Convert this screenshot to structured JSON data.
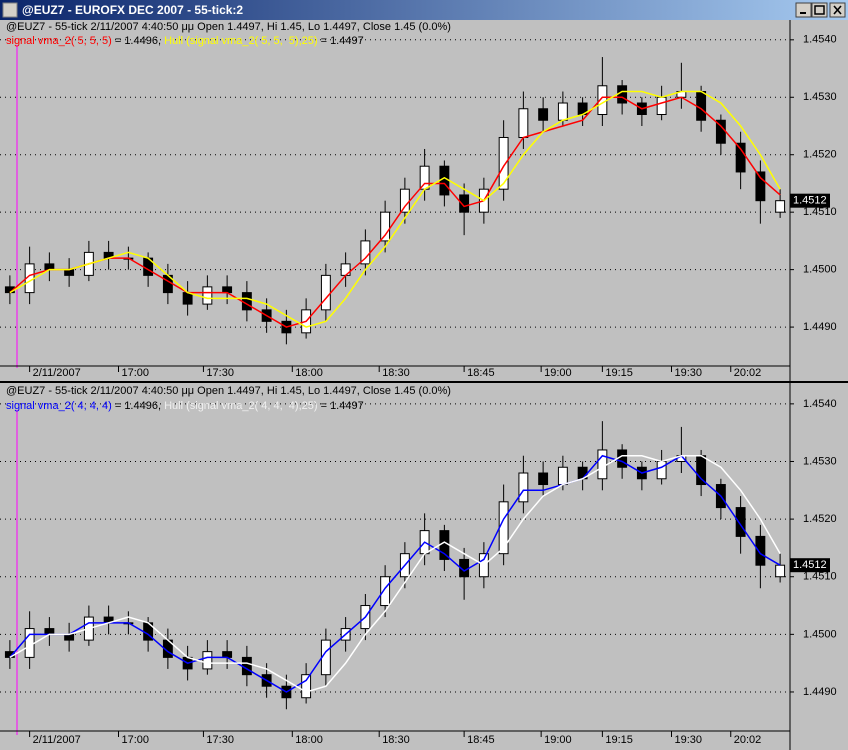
{
  "window": {
    "title": "@EUZ7 - EUROFX DEC 2007 - 55-tick:2"
  },
  "chart_data": [
    {
      "type": "candlestick",
      "header": "@EUZ7 - 55-tick 2/11/2007 4:40:50 μμ Open 1.4497, Hi 1.45, Lo 1.4497, Close 1.45 (0.0%)",
      "open": [
        1.4497,
        1.4496,
        1.4501,
        1.45,
        1.4499,
        1.4503,
        1.4502,
        1.4502,
        1.4499,
        1.4496,
        1.4494,
        1.4497,
        1.4496,
        1.4493,
        1.4491,
        1.4489,
        1.4493,
        1.4499,
        1.4501,
        1.4505,
        1.451,
        1.4514,
        1.4518,
        1.4513,
        1.451,
        1.4514,
        1.4523,
        1.4528,
        1.4526,
        1.4529,
        1.4527,
        1.4532,
        1.4529,
        1.4527,
        1.453,
        1.4531,
        1.4526,
        1.4522,
        1.4517,
        1.451
      ],
      "high": [
        1.4499,
        1.4504,
        1.4503,
        1.4502,
        1.4505,
        1.4505,
        1.4504,
        1.4503,
        1.4501,
        1.4498,
        1.4499,
        1.4499,
        1.4498,
        1.4495,
        1.4493,
        1.4495,
        1.4501,
        1.4503,
        1.4507,
        1.4512,
        1.4516,
        1.4521,
        1.4519,
        1.4515,
        1.4516,
        1.4526,
        1.4531,
        1.453,
        1.4531,
        1.453,
        1.4537,
        1.4533,
        1.453,
        1.4532,
        1.4536,
        1.4532,
        1.4527,
        1.4524,
        1.4519,
        1.4514
      ],
      "low": [
        1.4494,
        1.4494,
        1.4498,
        1.4497,
        1.4498,
        1.45,
        1.45,
        1.4497,
        1.4494,
        1.4492,
        1.4493,
        1.4494,
        1.4491,
        1.4489,
        1.4487,
        1.4488,
        1.4491,
        1.4497,
        1.4499,
        1.4503,
        1.4508,
        1.4512,
        1.4511,
        1.4506,
        1.4508,
        1.4512,
        1.4521,
        1.4524,
        1.4525,
        1.4525,
        1.4525,
        1.4527,
        1.4525,
        1.4526,
        1.4528,
        1.4524,
        1.452,
        1.4514,
        1.4508,
        1.4509
      ],
      "close": [
        1.4496,
        1.4501,
        1.45,
        1.4499,
        1.4503,
        1.4502,
        1.4502,
        1.4499,
        1.4496,
        1.4494,
        1.4497,
        1.4496,
        1.4493,
        1.4491,
        1.4489,
        1.4493,
        1.4499,
        1.4501,
        1.4505,
        1.451,
        1.4514,
        1.4518,
        1.4513,
        1.451,
        1.4514,
        1.4523,
        1.4528,
        1.4526,
        1.4529,
        1.4527,
        1.4532,
        1.4529,
        1.4527,
        1.453,
        1.4531,
        1.4526,
        1.4522,
        1.4517,
        1.4512,
        1.4512
      ],
      "series": [
        {
          "name": "signal vma_2( 5, 5, 5)",
          "readout": " = 1.4496, ",
          "color": "#ff0000",
          "values": [
            1.4496,
            1.4499,
            1.45,
            1.45,
            1.4501,
            1.4502,
            1.4502,
            1.45,
            1.4498,
            1.4496,
            1.4496,
            1.4496,
            1.4494,
            1.4492,
            1.449,
            1.4491,
            1.4495,
            1.4499,
            1.4502,
            1.4506,
            1.4511,
            1.4515,
            1.4515,
            1.4511,
            1.4512,
            1.4518,
            1.4523,
            1.4524,
            1.4525,
            1.4526,
            1.453,
            1.453,
            1.4528,
            1.4529,
            1.453,
            1.4528,
            1.4525,
            1.4521,
            1.4516,
            1.4513
          ]
        },
        {
          "name": "Hull (signal vma_2( 5, 5,  5),25)",
          "readout": " = 1.4497",
          "color": "#ffff00",
          "values": [
            1.4496,
            1.4498,
            1.45,
            1.45,
            1.4501,
            1.4502,
            1.4503,
            1.4502,
            1.4499,
            1.4496,
            1.4495,
            1.4495,
            1.4495,
            1.4494,
            1.4492,
            1.449,
            1.4491,
            1.4495,
            1.45,
            1.4504,
            1.4509,
            1.4514,
            1.4516,
            1.4514,
            1.4512,
            1.4515,
            1.452,
            1.4524,
            1.4526,
            1.4527,
            1.4529,
            1.4531,
            1.4531,
            1.453,
            1.4531,
            1.4531,
            1.4529,
            1.4525,
            1.452,
            1.4514
          ]
        }
      ],
      "last_price": 1.4512,
      "xlim": [
        -0.5,
        39.5
      ],
      "xticks": [
        {
          "value": 1,
          "label": "2/11/2007"
        },
        {
          "value": 5.5,
          "label": "17:00"
        },
        {
          "value": 9.8,
          "label": "17:30"
        },
        {
          "value": 14.3,
          "label": "18:00"
        },
        {
          "value": 18.7,
          "label": "18:30"
        },
        {
          "value": 23,
          "label": "18:45"
        },
        {
          "value": 26.9,
          "label": "19:00"
        },
        {
          "value": 30,
          "label": "19:15"
        },
        {
          "value": 33.5,
          "label": "19:30"
        },
        {
          "value": 36.5,
          "label": "20:02"
        }
      ],
      "ylim": [
        1.44834,
        1.45431
      ],
      "yticks": [
        {
          "value": 1.454,
          "label": "1.4540"
        },
        {
          "value": 1.453,
          "label": "1.4530"
        },
        {
          "value": 1.452,
          "label": "1.4520"
        },
        {
          "value": 1.451,
          "label": "1.4510"
        },
        {
          "value": 1.45,
          "label": "1.4500"
        },
        {
          "value": 1.449,
          "label": "1.4490"
        }
      ],
      "grid": true
    },
    {
      "type": "candlestick",
      "header": "@EUZ7 - 55-tick 2/11/2007 4:40:50 μμ Open 1.4497, Hi 1.45, Lo 1.4497, Close 1.45 (0.0%)",
      "open": [
        1.4497,
        1.4496,
        1.4501,
        1.45,
        1.4499,
        1.4503,
        1.4502,
        1.4502,
        1.4499,
        1.4496,
        1.4494,
        1.4497,
        1.4496,
        1.4493,
        1.4491,
        1.4489,
        1.4493,
        1.4499,
        1.4501,
        1.4505,
        1.451,
        1.4514,
        1.4518,
        1.4513,
        1.451,
        1.4514,
        1.4523,
        1.4528,
        1.4526,
        1.4529,
        1.4527,
        1.4532,
        1.4529,
        1.4527,
        1.453,
        1.4531,
        1.4526,
        1.4522,
        1.4517,
        1.451
      ],
      "high": [
        1.4499,
        1.4504,
        1.4503,
        1.4502,
        1.4505,
        1.4505,
        1.4504,
        1.4503,
        1.4501,
        1.4498,
        1.4499,
        1.4499,
        1.4498,
        1.4495,
        1.4493,
        1.4495,
        1.4501,
        1.4503,
        1.4507,
        1.4512,
        1.4516,
        1.4521,
        1.4519,
        1.4515,
        1.4516,
        1.4526,
        1.4531,
        1.453,
        1.4531,
        1.453,
        1.4537,
        1.4533,
        1.453,
        1.4532,
        1.4536,
        1.4532,
        1.4527,
        1.4524,
        1.4519,
        1.4514
      ],
      "low": [
        1.4494,
        1.4494,
        1.4498,
        1.4497,
        1.4498,
        1.45,
        1.45,
        1.4497,
        1.4494,
        1.4492,
        1.4493,
        1.4494,
        1.4491,
        1.4489,
        1.4487,
        1.4488,
        1.4491,
        1.4497,
        1.4499,
        1.4503,
        1.4508,
        1.4512,
        1.4511,
        1.4506,
        1.4508,
        1.4512,
        1.4521,
        1.4524,
        1.4525,
        1.4525,
        1.4525,
        1.4527,
        1.4525,
        1.4526,
        1.4528,
        1.4524,
        1.452,
        1.4514,
        1.4508,
        1.4509
      ],
      "close": [
        1.4496,
        1.4501,
        1.45,
        1.4499,
        1.4503,
        1.4502,
        1.4502,
        1.4499,
        1.4496,
        1.4494,
        1.4497,
        1.4496,
        1.4493,
        1.4491,
        1.4489,
        1.4493,
        1.4499,
        1.4501,
        1.4505,
        1.451,
        1.4514,
        1.4518,
        1.4513,
        1.451,
        1.4514,
        1.4523,
        1.4528,
        1.4526,
        1.4529,
        1.4527,
        1.4532,
        1.4529,
        1.4527,
        1.453,
        1.4531,
        1.4526,
        1.4522,
        1.4517,
        1.4512,
        1.4512
      ],
      "series": [
        {
          "name": "signal vma_2( 4, 4, 4)",
          "readout": " = 1.4496, ",
          "color": "#0000ff",
          "values": [
            1.4496,
            1.45,
            1.45,
            1.45,
            1.4502,
            1.4502,
            1.4502,
            1.45,
            1.4497,
            1.4495,
            1.4496,
            1.4496,
            1.4494,
            1.4492,
            1.449,
            1.4492,
            1.4497,
            1.45,
            1.4503,
            1.4508,
            1.4512,
            1.4516,
            1.4514,
            1.4511,
            1.4513,
            1.452,
            1.4525,
            1.4525,
            1.4526,
            1.4527,
            1.4531,
            1.453,
            1.4528,
            1.4529,
            1.4531,
            1.4527,
            1.4524,
            1.4519,
            1.4514,
            1.4512
          ]
        },
        {
          "name": "Hull (signal vma_2( 4, 4,  4),25)",
          "readout": " = 1.4497",
          "color": "#ffffff",
          "values": [
            1.4496,
            1.4498,
            1.45,
            1.45,
            1.4501,
            1.4502,
            1.4503,
            1.4502,
            1.4499,
            1.4496,
            1.4495,
            1.4495,
            1.4495,
            1.4494,
            1.4492,
            1.449,
            1.4491,
            1.4495,
            1.45,
            1.4504,
            1.4509,
            1.4514,
            1.4516,
            1.4514,
            1.4512,
            1.4515,
            1.452,
            1.4524,
            1.4526,
            1.4527,
            1.4529,
            1.4531,
            1.4531,
            1.453,
            1.4531,
            1.4531,
            1.4529,
            1.4525,
            1.452,
            1.4514
          ]
        }
      ],
      "last_price": 1.4512,
      "xlim": [
        -0.5,
        39.5
      ],
      "xticks": [
        {
          "value": 1,
          "label": "2/11/2007"
        },
        {
          "value": 5.5,
          "label": "17:00"
        },
        {
          "value": 9.8,
          "label": "17:30"
        },
        {
          "value": 14.3,
          "label": "18:00"
        },
        {
          "value": 18.7,
          "label": "18:30"
        },
        {
          "value": 23,
          "label": "18:45"
        },
        {
          "value": 26.9,
          "label": "19:00"
        },
        {
          "value": 30,
          "label": "19:15"
        },
        {
          "value": 33.5,
          "label": "19:30"
        },
        {
          "value": 36.5,
          "label": "20:02"
        }
      ],
      "ylim": [
        1.44834,
        1.45431
      ],
      "yticks": [
        {
          "value": 1.454,
          "label": "1.4540"
        },
        {
          "value": 1.453,
          "label": "1.4530"
        },
        {
          "value": 1.452,
          "label": "1.4520"
        },
        {
          "value": 1.451,
          "label": "1.4510"
        },
        {
          "value": 1.45,
          "label": "1.4500"
        },
        {
          "value": 1.449,
          "label": "1.4490"
        }
      ],
      "grid": true
    }
  ]
}
